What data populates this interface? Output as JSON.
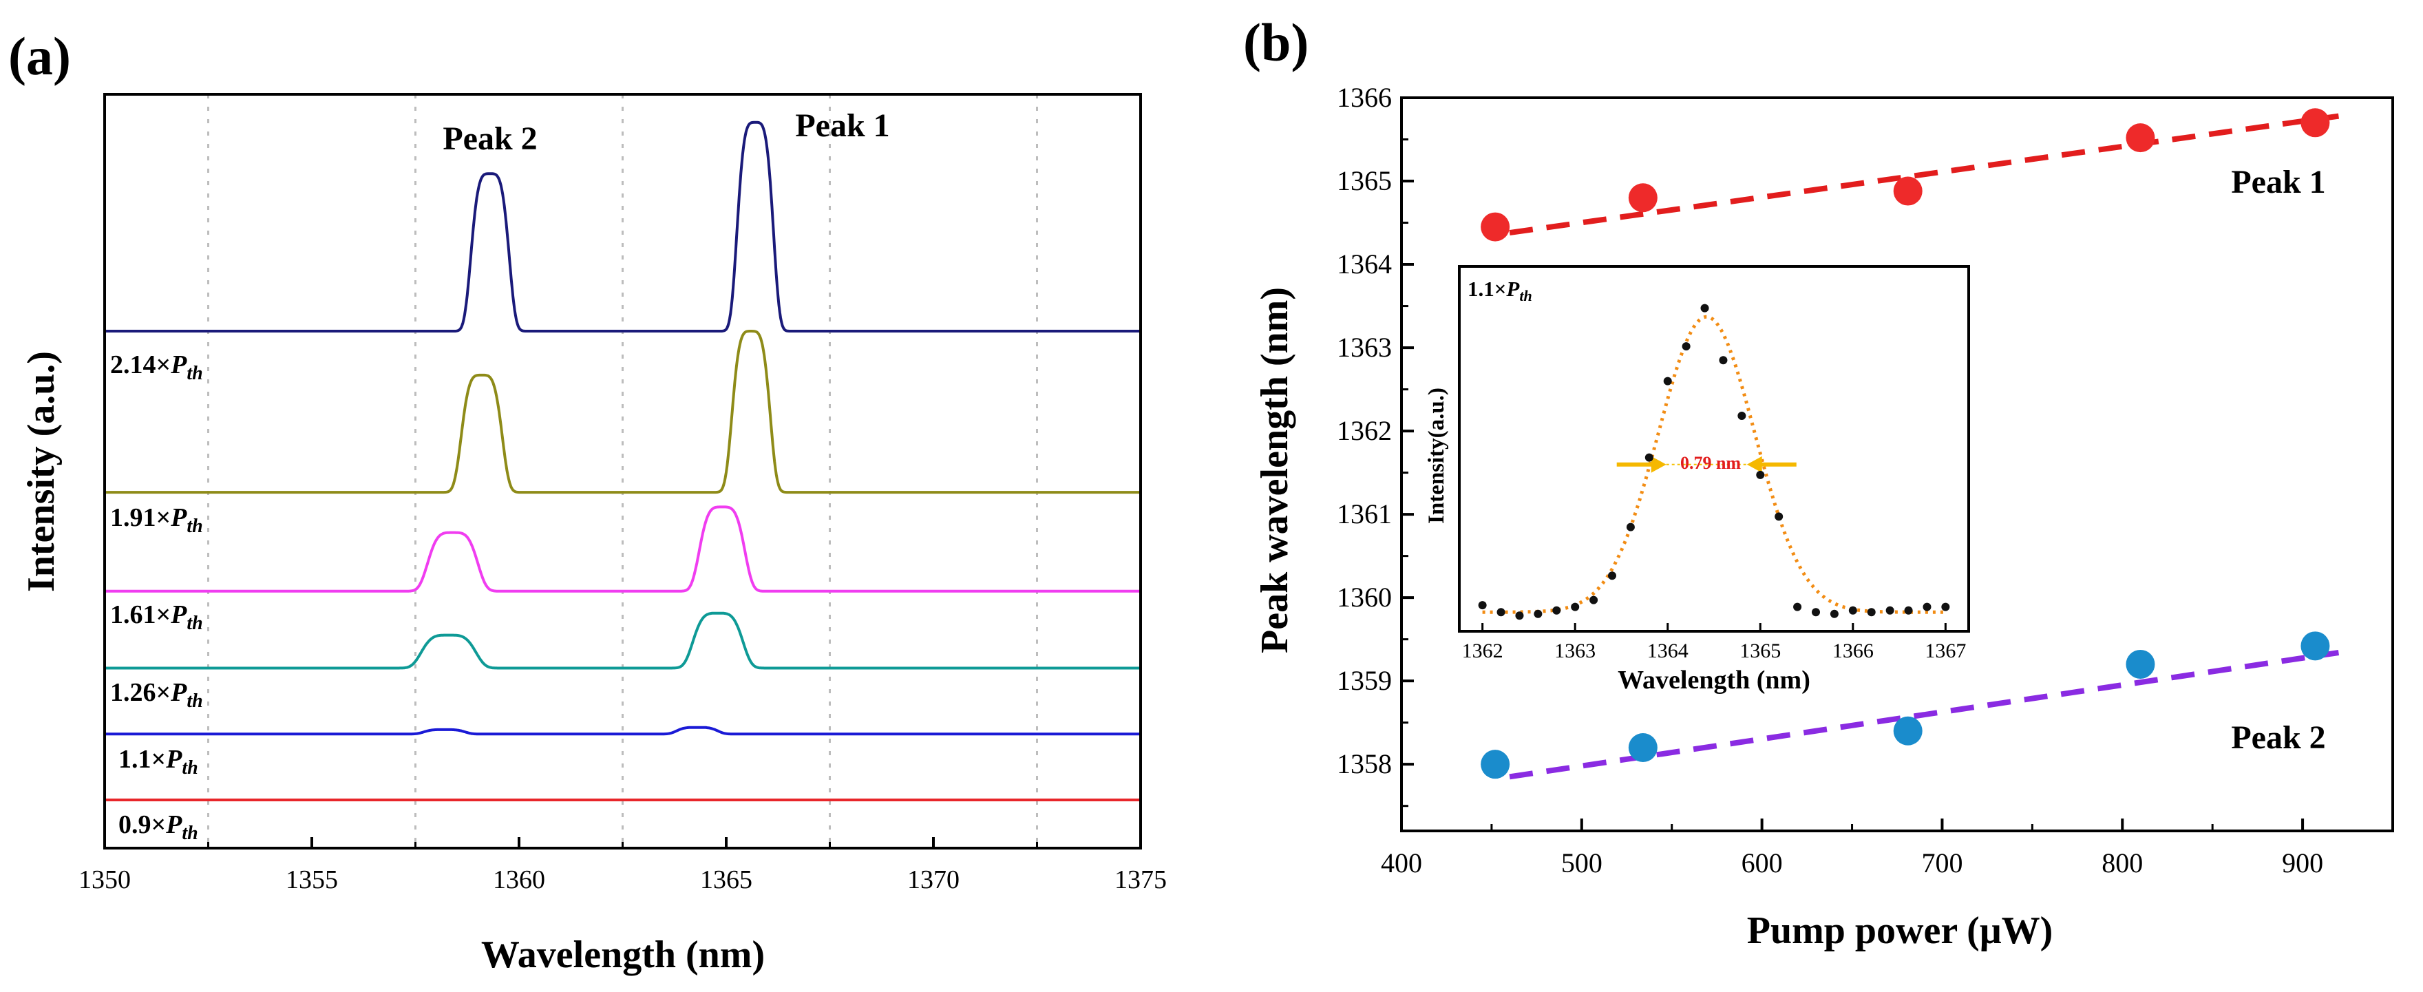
{
  "chart_data": [
    {
      "panel_label": "(a)",
      "type": "line",
      "title": "",
      "xlabel": "Wavelength (nm)",
      "ylabel": "Intensity (a.u.)",
      "xlim": [
        1350,
        1375
      ],
      "xticks": [
        "1350",
        "1355",
        "1360",
        "1365",
        "1370",
        "1375"
      ],
      "vertical_grid_dotted": [
        1352.5,
        1357.5,
        1362.5,
        1367.5,
        1372.5
      ],
      "peak_labels": [
        {
          "text": "Peak 2",
          "x": 1359.2
        },
        {
          "text": "Peak 1",
          "x": 1365.7
        }
      ],
      "series": [
        {
          "name": "0.9×P_th",
          "label_prefix": "0.9×",
          "color": "#e8262a",
          "baseline": 0.0,
          "peak2": {
            "x": 1359.0,
            "amp": 0.0,
            "w": 0.6
          },
          "peak1": {
            "x": 1365.0,
            "amp": 0.0,
            "w": 0.6
          }
        },
        {
          "name": "1.1×P_th",
          "label_prefix": "1.1×",
          "color": "#1a1ad6",
          "baseline": 0.18,
          "peak2": {
            "x": 1358.2,
            "amp": 0.012,
            "w": 0.45
          },
          "peak1": {
            "x": 1364.3,
            "amp": 0.018,
            "w": 0.45
          }
        },
        {
          "name": "1.26×P_th",
          "label_prefix": "1.26×",
          "color": "#0e9a96",
          "baseline": 0.36,
          "peak2": {
            "x": 1358.3,
            "amp": 0.09,
            "w": 0.6
          },
          "peak1": {
            "x": 1364.8,
            "amp": 0.15,
            "w": 0.55
          }
        },
        {
          "name": "1.61×P_th",
          "label_prefix": "1.61×",
          "color": "#f03df0",
          "baseline": 0.57,
          "peak2": {
            "x": 1358.4,
            "amp": 0.16,
            "w": 0.55
          },
          "peak1": {
            "x": 1364.9,
            "amp": 0.23,
            "w": 0.5
          }
        },
        {
          "name": "1.91×P_th",
          "label_prefix": "1.91×",
          "color": "#8e8b18",
          "baseline": 0.84,
          "peak2": {
            "x": 1359.1,
            "amp": 0.32,
            "w": 0.45
          },
          "peak1": {
            "x": 1365.6,
            "amp": 0.44,
            "w": 0.42
          }
        },
        {
          "name": "2.14×P_th",
          "label_prefix": "2.14×",
          "color": "#1a1a7a",
          "baseline": 1.28,
          "peak2": {
            "x": 1359.3,
            "amp": 0.43,
            "w": 0.42
          },
          "peak1": {
            "x": 1365.7,
            "amp": 0.57,
            "w": 0.4
          }
        }
      ]
    },
    {
      "panel_label": "(b)",
      "type": "scatter",
      "title": "",
      "xlabel": "Pump power (μW)",
      "ylabel": "Peak wavelength (nm)",
      "xlim": [
        400,
        950
      ],
      "ylim": [
        1357.2,
        1366
      ],
      "xticks": [
        "400",
        "500",
        "600",
        "700",
        "800",
        "900"
      ],
      "yticks": [
        "1358",
        "1359",
        "1360",
        "1361",
        "1362",
        "1363",
        "1364",
        "1365",
        "1366"
      ],
      "series": [
        {
          "name": "Peak 1",
          "color": "#ee2a2a",
          "fit_color": "#e21d1d",
          "x": [
            452,
            534,
            681,
            810,
            907
          ],
          "y": [
            1364.45,
            1364.8,
            1364.88,
            1365.52,
            1365.7
          ],
          "fit": {
            "x": [
              460,
              920
            ],
            "y": [
              1364.38,
              1365.78
            ]
          }
        },
        {
          "name": "Peak 2",
          "color": "#1a8ccc",
          "fit_color": "#8a2be2",
          "x": [
            452,
            534,
            681,
            810,
            907
          ],
          "y": [
            1358.0,
            1358.2,
            1358.4,
            1359.2,
            1359.42
          ],
          "fit": {
            "x": [
              460,
              920
            ],
            "y": [
              1357.85,
              1359.34
            ]
          }
        }
      ],
      "inset": {
        "label_prefix": "1.1×",
        "xlabel": "Wavelength (nm)",
        "ylabel": "Intensity(a.u.)",
        "xlim": [
          1361.75,
          1367.25
        ],
        "ylim": [
          0,
          1.05
        ],
        "xticks": [
          "1362",
          "1363",
          "1364",
          "1365",
          "1366",
          "1367"
        ],
        "fwhm_label": "0.79 nm",
        "fwhm": 0.79,
        "fit": {
          "center": 1364.42,
          "amp": 0.85,
          "baseline": 0.055,
          "sigma": 0.52
        },
        "points": {
          "x": [
            1362.0,
            1362.2,
            1362.4,
            1362.6,
            1362.8,
            1363.0,
            1363.2,
            1363.4,
            1363.6,
            1363.8,
            1364.0,
            1364.2,
            1364.4,
            1364.6,
            1364.8,
            1365.0,
            1365.2,
            1365.4,
            1365.6,
            1365.8,
            1366.0,
            1366.2,
            1366.4,
            1366.6,
            1366.8,
            1367.0
          ],
          "y": [
            0.075,
            0.055,
            0.045,
            0.05,
            0.06,
            0.07,
            0.09,
            0.16,
            0.3,
            0.5,
            0.72,
            0.82,
            0.93,
            0.78,
            0.62,
            0.45,
            0.33,
            0.07,
            0.055,
            0.05,
            0.06,
            0.055,
            0.06,
            0.06,
            0.07,
            0.07
          ]
        }
      }
    }
  ]
}
